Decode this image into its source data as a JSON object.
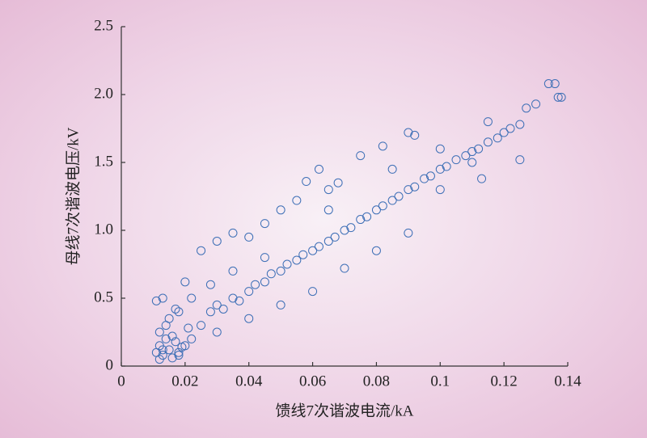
{
  "chart_data": {
    "type": "scatter",
    "xlabel": "馈线7次谐波电流/kA",
    "ylabel": "母线7次谐波电压/kV",
    "color": "#3d6fb6",
    "xlim": [
      0,
      0.14
    ],
    "xticks": [
      0,
      0.02,
      0.04,
      0.06,
      0.08,
      0.1,
      0.12,
      0.14
    ],
    "ylim": [
      0,
      2.5
    ],
    "yticks": [
      0,
      0.5,
      {
        "value": 1,
        "label": "1.0"
      },
      1.5,
      {
        "value": 2,
        "label": "2.0"
      },
      2.5
    ],
    "x": [
      0.011,
      0.012,
      0.013,
      0.014,
      0.015,
      0.016,
      0.017,
      0.018,
      0.019,
      0.012,
      0.014,
      0.016,
      0.018,
      0.011,
      0.013,
      0.015,
      0.017,
      0.02,
      0.021,
      0.022,
      0.012,
      0.013,
      0.025,
      0.028,
      0.03,
      0.032,
      0.035,
      0.037,
      0.04,
      0.042,
      0.045,
      0.047,
      0.05,
      0.052,
      0.055,
      0.057,
      0.06,
      0.062,
      0.065,
      0.067,
      0.07,
      0.072,
      0.075,
      0.077,
      0.08,
      0.082,
      0.085,
      0.087,
      0.09,
      0.092,
      0.095,
      0.097,
      0.1,
      0.102,
      0.105,
      0.108,
      0.11,
      0.112,
      0.115,
      0.118,
      0.12,
      0.122,
      0.125,
      0.127,
      0.13,
      0.134,
      0.136,
      0.137,
      0.138,
      0.03,
      0.04,
      0.05,
      0.06,
      0.07,
      0.08,
      0.09,
      0.1,
      0.113,
      0.125,
      0.02,
      0.025,
      0.03,
      0.035,
      0.04,
      0.045,
      0.05,
      0.055,
      0.058,
      0.062,
      0.065,
      0.068,
      0.075,
      0.082,
      0.09,
      0.092,
      0.1,
      0.115,
      0.11,
      0.085,
      0.065,
      0.045,
      0.035,
      0.028,
      0.022,
      0.018
    ],
    "y": [
      0.1,
      0.15,
      0.08,
      0.2,
      0.12,
      0.06,
      0.18,
      0.1,
      0.14,
      0.25,
      0.3,
      0.22,
      0.08,
      0.48,
      0.5,
      0.35,
      0.42,
      0.15,
      0.28,
      0.2,
      0.05,
      0.12,
      0.3,
      0.4,
      0.45,
      0.42,
      0.5,
      0.48,
      0.55,
      0.6,
      0.62,
      0.68,
      0.7,
      0.75,
      0.78,
      0.82,
      0.85,
      0.88,
      0.92,
      0.95,
      1.0,
      1.02,
      1.08,
      1.1,
      1.15,
      1.18,
      1.22,
      1.25,
      1.3,
      1.32,
      1.38,
      1.4,
      1.45,
      1.47,
      1.52,
      1.55,
      1.58,
      1.6,
      1.65,
      1.68,
      1.72,
      1.75,
      1.78,
      1.9,
      1.93,
      2.08,
      2.08,
      1.98,
      1.98,
      0.25,
      0.35,
      0.45,
      0.55,
      0.72,
      0.85,
      0.98,
      1.3,
      1.38,
      1.52,
      0.62,
      0.85,
      0.92,
      0.98,
      0.95,
      1.05,
      1.15,
      1.22,
      1.36,
      1.45,
      1.3,
      1.35,
      1.55,
      1.62,
      1.72,
      1.7,
      1.6,
      1.8,
      1.5,
      1.45,
      1.15,
      0.8,
      0.7,
      0.6,
      0.5,
      0.4
    ]
  }
}
